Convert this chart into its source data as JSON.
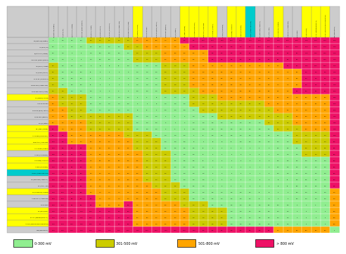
{
  "col_labels": [
    "Pt (Platinum/ Platine)",
    "Au (Gold/ Or)",
    "Ti (Titanium / Titane)",
    "AlSi 316L (passive/passif)",
    "Ag (Silver/ Argent)",
    "Ni (Nickel/ Nickel)",
    "Ni Cu 30 (Monel 400)",
    "NiCr15 Fe8 (Inconel 600)",
    "Cu65 Zn23 Ni22 (Arcap)",
    "Cu (Copper/ Cuivre)",
    "Al10 Sn66 Pb34",
    "Cu Zn34 (Brass/ Laiton)",
    "Cu68 Sn12 (Bronze)",
    "Sn (Tin/ Etain)",
    "Pb (Lead / Plomb)",
    "Al Cu Mg1 (Duralumin)",
    "Mild steel / Acier doux",
    "Al Si 10Mg (Alpas H)",
    "Al 99.5 (Aluminum)",
    "Hard steel/ Acier dur",
    "Al Mg5 (Duralinox)",
    "ADC12 (Aluminum alloy)",
    "Cd (Cadmium/ Cadmium)",
    "Fe ( Steel / Fer)",
    "Cr (Chromium/ Chrome)",
    "Al Mg Si0.7 (Almasilium)",
    "Sn75 Zn25",
    "Zn (Zinc/ Zinc)",
    "Zn Al4 (Zamak3/Zamac 3)",
    "Al PVD (Physical vapor deposition)",
    "Mg (Magnesium)"
  ],
  "row_labels": [
    "Pt (Platinum/ Platine)",
    "Au (Gold/ Or)",
    "Ti (Titanium / Titane)",
    "AlSi 316L (passive/passif)",
    "Ag (Silver/ Argent)",
    "Ni (Nickel/ Nickel)",
    "Ni Cu 30 (Monel 400)",
    "NiCr15 Fe8 (Inconel 600)",
    "Cu65 Zn23 Ni22 (Arcap)",
    "Cu (Copper/ Cuivre)",
    "Al10 Sn66 Pb34",
    "Cu Zn34 (Brass/ Laiton)",
    "Cu68 Sn12 (Bronze)",
    "Sn (Tin/ Etain)",
    "Pb (Lead / Plomb)",
    "Al Cu Mg1 (Duralumin)",
    "Mild steel / Acier doux",
    "Al Si 10Mg (Alpas H)",
    "Al 99.5 (Aluminum)",
    "Hard steel/ Acier dur",
    "Al Mg5 (Duralinox)",
    "ADC12 (Aluminum alloy)",
    "Cd (Cadmium/ Cadmium)",
    "Fe ( Steel / Fer)",
    "Cr (Chromium/ Chrome)",
    "Al Mg Si0.7 (Almasilium)",
    "Sn75 Zn25",
    "Zn (Zinc/ Zinc)",
    "Zn Al4 (Zamak3/Zamac 3)",
    "Al PVD (Physical vapor deposition)",
    "Mg (Magnesium)"
  ],
  "data": [
    [
      0,
      130,
      250,
      250,
      350,
      430,
      430,
      430,
      450,
      570,
      600,
      650,
      770,
      800,
      840,
      840,
      1000,
      1040,
      1060,
      1080,
      1100,
      1100,
      1100,
      1100,
      1100,
      1200,
      1300,
      1400,
      1400,
      1400,
      1900
    ],
    [
      130,
      0,
      110,
      110,
      220,
      300,
      300,
      300,
      320,
      470,
      520,
      610,
      670,
      720,
      710,
      810,
      870,
      930,
      960,
      960,
      970,
      970,
      1010,
      1050,
      1070,
      1070,
      1070,
      1270,
      1270,
      1270,
      1420
    ],
    [
      250,
      110,
      0,
      0,
      110,
      180,
      180,
      180,
      200,
      320,
      350,
      400,
      520,
      550,
      560,
      690,
      750,
      815,
      840,
      845,
      850,
      850,
      850,
      850,
      855,
      950,
      950,
      1100,
      1150,
      1150,
      1700
    ],
    [
      250,
      110,
      0,
      0,
      110,
      180,
      180,
      180,
      200,
      320,
      350,
      400,
      520,
      550,
      560,
      690,
      750,
      815,
      840,
      845,
      850,
      850,
      850,
      850,
      855,
      950,
      950,
      1100,
      1150,
      1150,
      1700
    ],
    [
      350,
      220,
      100,
      100,
      0,
      80,
      80,
      80,
      100,
      220,
      250,
      300,
      420,
      470,
      490,
      660,
      710,
      715,
      740,
      745,
      750,
      750,
      750,
      750,
      760,
      860,
      860,
      1010,
      1050,
      1050,
      1400
    ],
    [
      430,
      300,
      180,
      180,
      80,
      0,
      0,
      0,
      20,
      110,
      170,
      220,
      340,
      370,
      410,
      510,
      570,
      635,
      660,
      665,
      670,
      670,
      670,
      675,
      770,
      770,
      800,
      970,
      970,
      970,
      1120
    ],
    [
      430,
      300,
      180,
      180,
      80,
      0,
      0,
      0,
      20,
      110,
      170,
      220,
      340,
      370,
      410,
      510,
      570,
      635,
      660,
      665,
      670,
      670,
      670,
      675,
      770,
      770,
      800,
      970,
      970,
      970,
      1120
    ],
    [
      430,
      300,
      180,
      180,
      80,
      0,
      0,
      0,
      20,
      110,
      170,
      220,
      340,
      370,
      410,
      510,
      570,
      635,
      660,
      665,
      670,
      670,
      670,
      675,
      770,
      770,
      800,
      970,
      970,
      970,
      1120
    ],
    [
      450,
      320,
      200,
      200,
      100,
      20,
      20,
      20,
      0,
      120,
      150,
      200,
      320,
      350,
      360,
      490,
      550,
      615,
      640,
      645,
      650,
      650,
      650,
      650,
      755,
      750,
      816,
      960,
      960,
      960,
      1500
    ],
    [
      570,
      440,
      320,
      320,
      220,
      140,
      140,
      140,
      120,
      0,
      30,
      80,
      200,
      230,
      270,
      370,
      470,
      495,
      520,
      525,
      530,
      530,
      530,
      530,
      630,
      630,
      700,
      800,
      800,
      800,
      1350
    ],
    [
      600,
      470,
      350,
      350,
      250,
      170,
      170,
      170,
      150,
      30,
      0,
      50,
      170,
      200,
      210,
      310,
      400,
      465,
      490,
      495,
      500,
      500,
      500,
      505,
      605,
      600,
      760,
      800,
      800,
      800,
      1300
    ],
    [
      650,
      520,
      400,
      400,
      300,
      220,
      220,
      220,
      200,
      80,
      50,
      0,
      120,
      160,
      190,
      290,
      350,
      415,
      440,
      445,
      450,
      450,
      450,
      460,
      550,
      560,
      710,
      750,
      750,
      750,
      1300
    ],
    [
      770,
      640,
      500,
      500,
      390,
      340,
      340,
      340,
      320,
      200,
      170,
      120,
      0,
      30,
      70,
      170,
      250,
      295,
      320,
      325,
      330,
      330,
      330,
      335,
      420,
      430,
      590,
      630,
      630,
      630,
      1180
    ],
    [
      800,
      670,
      550,
      550,
      440,
      370,
      370,
      370,
      350,
      230,
      200,
      150,
      30,
      0,
      40,
      140,
      200,
      265,
      290,
      295,
      300,
      300,
      300,
      305,
      405,
      400,
      560,
      600,
      600,
      600,
      1150
    ],
    [
      840,
      710,
      580,
      580,
      490,
      410,
      410,
      410,
      360,
      270,
      240,
      190,
      70,
      40,
      0,
      100,
      160,
      235,
      250,
      255,
      260,
      260,
      260,
      260,
      360,
      360,
      430,
      560,
      560,
      560,
      1110
    ],
    [
      840,
      810,
      690,
      690,
      560,
      510,
      510,
      510,
      490,
      370,
      340,
      290,
      170,
      140,
      100,
      0,
      60,
      125,
      150,
      155,
      160,
      160,
      160,
      165,
      260,
      260,
      430,
      460,
      460,
      460,
      1010
    ],
    [
      1000,
      870,
      750,
      750,
      660,
      575,
      570,
      570,
      560,
      400,
      400,
      350,
      250,
      200,
      180,
      60,
      0,
      65,
      90,
      95,
      100,
      100,
      100,
      100,
      200,
      200,
      360,
      400,
      400,
      400,
      950
    ],
    [
      1040,
      930,
      815,
      815,
      715,
      630,
      630,
      630,
      615,
      495,
      465,
      415,
      295,
      265,
      215,
      125,
      65,
      0,
      25,
      30,
      35,
      35,
      35,
      40,
      135,
      135,
      295,
      335,
      335,
      335,
      895
    ],
    [
      1060,
      960,
      840,
      840,
      740,
      660,
      660,
      660,
      640,
      520,
      490,
      440,
      320,
      290,
      250,
      150,
      90,
      25,
      0,
      5,
      10,
      10,
      10,
      15,
      110,
      110,
      270,
      310,
      310,
      310,
      860
    ],
    [
      1080,
      960,
      845,
      845,
      745,
      665,
      665,
      665,
      645,
      525,
      495,
      445,
      325,
      295,
      255,
      155,
      95,
      30,
      5,
      0,
      5,
      5,
      5,
      10,
      105,
      105,
      265,
      300,
      300,
      300,
      850
    ],
    [
      1100,
      970,
      850,
      850,
      750,
      670,
      670,
      670,
      650,
      530,
      500,
      450,
      330,
      300,
      260,
      160,
      100,
      35,
      10,
      5,
      0,
      0,
      1,
      5,
      100,
      100,
      260,
      300,
      300,
      300,
      850
    ],
    [
      1100,
      970,
      850,
      850,
      750,
      670,
      670,
      670,
      650,
      530,
      500,
      450,
      330,
      300,
      260,
      160,
      100,
      35,
      10,
      5,
      0,
      0,
      1,
      5,
      100,
      100,
      260,
      300,
      300,
      300,
      850
    ],
    [
      1100,
      1010,
      850,
      850,
      750,
      675,
      675,
      675,
      650,
      530,
      500,
      450,
      330,
      300,
      260,
      160,
      100,
      40,
      15,
      10,
      5,
      5,
      5,
      5,
      95,
      95,
      255,
      295,
      295,
      295,
      850
    ],
    [
      1100,
      1050,
      850,
      850,
      750,
      670,
      670,
      670,
      650,
      530,
      505,
      460,
      335,
      305,
      260,
      165,
      100,
      40,
      15,
      10,
      5,
      5,
      5,
      0,
      95,
      95,
      285,
      296,
      296,
      296,
      845
    ],
    [
      1100,
      1070,
      855,
      855,
      760,
      770,
      770,
      770,
      755,
      630,
      605,
      550,
      420,
      400,
      360,
      260,
      200,
      135,
      110,
      105,
      100,
      100,
      95,
      95,
      0,
      0,
      180,
      200,
      200,
      200,
      750
    ],
    [
      1200,
      1070,
      950,
      950,
      860,
      770,
      770,
      770,
      750,
      630,
      600,
      560,
      430,
      400,
      360,
      260,
      200,
      135,
      110,
      105,
      100,
      100,
      95,
      95,
      0,
      0,
      180,
      200,
      200,
      200,
      750
    ],
    [
      1300,
      1070,
      950,
      950,
      860,
      800,
      800,
      800,
      816,
      700,
      760,
      710,
      590,
      560,
      430,
      430,
      360,
      295,
      270,
      265,
      260,
      260,
      255,
      285,
      180,
      180,
      0,
      40,
      40,
      40,
      590
    ],
    [
      1400,
      1270,
      1100,
      1100,
      1010,
      970,
      970,
      970,
      960,
      800,
      800,
      750,
      630,
      600,
      560,
      460,
      400,
      335,
      310,
      300,
      300,
      300,
      295,
      296,
      200,
      200,
      40,
      0,
      0,
      0,
      550
    ],
    [
      1400,
      1270,
      1150,
      1150,
      1050,
      970,
      970,
      970,
      960,
      800,
      800,
      750,
      630,
      600,
      560,
      460,
      400,
      335,
      310,
      300,
      300,
      300,
      295,
      296,
      200,
      200,
      40,
      0,
      0,
      0,
      550
    ],
    [
      1400,
      1270,
      1150,
      1150,
      1050,
      970,
      970,
      970,
      960,
      800,
      800,
      750,
      630,
      600,
      560,
      460,
      400,
      335,
      310,
      300,
      300,
      300,
      295,
      296,
      200,
      200,
      40,
      0,
      0,
      0,
      550
    ],
    [
      1900,
      1420,
      1700,
      1700,
      1400,
      1120,
      1120,
      1120,
      1500,
      1350,
      1300,
      1300,
      1180,
      1150,
      1110,
      1010,
      950,
      895,
      860,
      850,
      850,
      850,
      850,
      845,
      750,
      750,
      590,
      550,
      550,
      550,
      0
    ]
  ],
  "yellow_rows": [
    9,
    14,
    15,
    16,
    17,
    19,
    20,
    24,
    27,
    28,
    29
  ],
  "cyan_rows": [
    21
  ],
  "yellow_cols": [
    9,
    14,
    15,
    16,
    17,
    19,
    20,
    24,
    27,
    28,
    29
  ],
  "cyan_cols": [
    21
  ],
  "legend_labels": [
    "0-300 mV",
    "301-500 mV",
    "501-800 mV",
    "> 800 mV"
  ],
  "legend_colors": [
    "#90ee90",
    "#cccc00",
    "#ffa500",
    "#ee1166"
  ]
}
